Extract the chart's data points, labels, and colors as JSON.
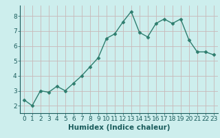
{
  "x": [
    0,
    1,
    2,
    3,
    4,
    5,
    6,
    7,
    8,
    9,
    10,
    11,
    12,
    13,
    14,
    15,
    16,
    17,
    18,
    19,
    20,
    21,
    22,
    23
  ],
  "y": [
    2.4,
    2.0,
    3.0,
    2.9,
    3.3,
    3.0,
    3.5,
    4.0,
    4.6,
    5.2,
    6.5,
    6.8,
    7.6,
    8.3,
    6.9,
    6.6,
    7.5,
    7.8,
    7.5,
    7.8,
    6.4,
    5.6,
    5.6,
    5.4
  ],
  "line_color": "#2e7d6e",
  "marker_color": "#2e7d6e",
  "bg_color": "#cdeeed",
  "grid_color": "#c8b8b8",
  "tick_color": "#1a5c5c",
  "xlabel": "Humidex (Indice chaleur)",
  "xlabel_color": "#1a5c5c",
  "ylim": [
    1.5,
    8.7
  ],
  "xlim": [
    -0.5,
    23.5
  ],
  "yticks": [
    2,
    3,
    4,
    5,
    6,
    7,
    8
  ],
  "xticks": [
    0,
    1,
    2,
    3,
    4,
    5,
    6,
    7,
    8,
    9,
    10,
    11,
    12,
    13,
    14,
    15,
    16,
    17,
    18,
    19,
    20,
    21,
    22,
    23
  ],
  "xlabel_fontsize": 7.5,
  "tick_fontsize": 6.5,
  "line_width": 1.0,
  "marker_size": 2.5
}
